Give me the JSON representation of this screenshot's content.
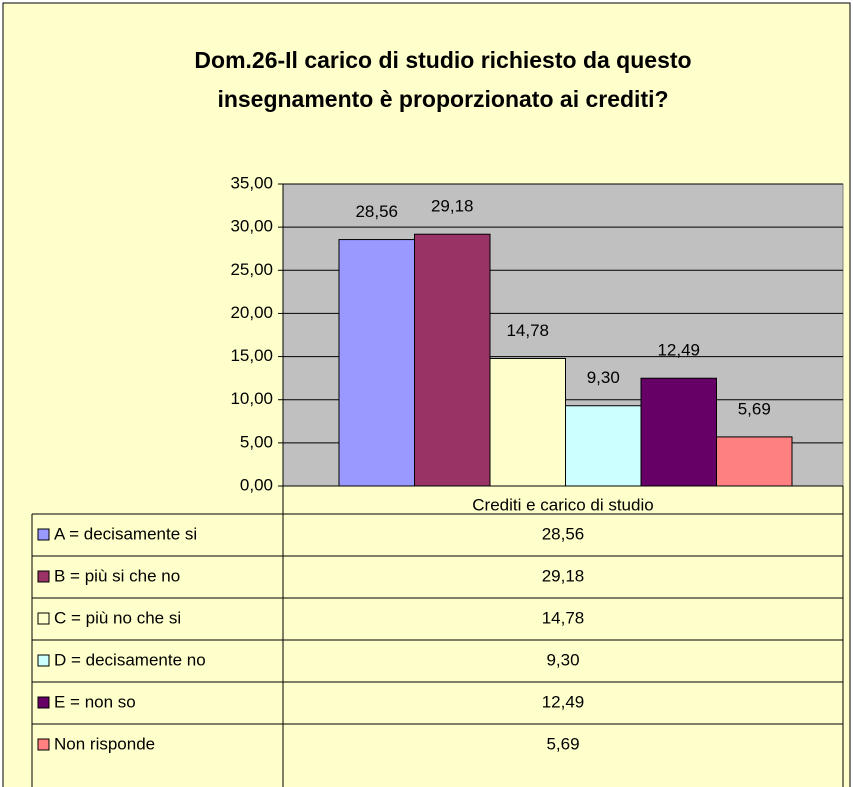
{
  "chart_data": {
    "type": "bar",
    "title": [
      "Dom.26-Il carico di studio richiesto da questo",
      "insegnamento è proporzionato ai crediti?"
    ],
    "categories": [
      "Crediti e carico di studio"
    ],
    "series": [
      {
        "name": "A = decisamente si",
        "color": "#9999FF",
        "values": [
          28.56
        ],
        "value_labels": [
          "28,56"
        ]
      },
      {
        "name": "B = più si che no",
        "color": "#993366",
        "values": [
          29.18
        ],
        "value_labels": [
          "29,18"
        ]
      },
      {
        "name": "C = più no che si",
        "color": "#FFFFCC",
        "values": [
          14.78
        ],
        "value_labels": [
          "14,78"
        ]
      },
      {
        "name": "D = decisamente no",
        "color": "#CCFFFF",
        "values": [
          9.3
        ],
        "value_labels": [
          "9,30"
        ]
      },
      {
        "name": "E = non so",
        "color": "#660066",
        "values": [
          12.49
        ],
        "value_labels": [
          "12,49"
        ]
      },
      {
        "name": "Non risponde",
        "color": "#FF8080",
        "values": [
          5.69
        ],
        "value_labels": [
          "5,69"
        ]
      }
    ],
    "ylim": [
      0,
      35
    ],
    "yticks": [
      {
        "value": 0,
        "label": "0,00"
      },
      {
        "value": 5,
        "label": "5,00"
      },
      {
        "value": 10,
        "label": "10,00"
      },
      {
        "value": 15,
        "label": "15,00"
      },
      {
        "value": 20,
        "label": "20,00"
      },
      {
        "value": 25,
        "label": "25,00"
      },
      {
        "value": 30,
        "label": "30,00"
      },
      {
        "value": 35,
        "label": "35,00"
      }
    ],
    "grid": true
  }
}
